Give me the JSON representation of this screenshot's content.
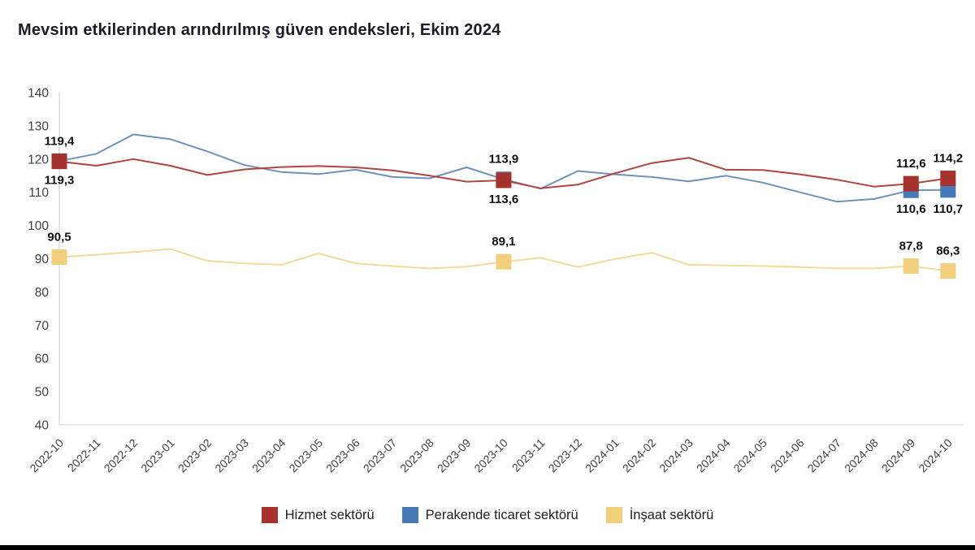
{
  "title": "Mevsim etkilerinden arındırılmış güven endeksleri, Ekim 2024",
  "colors": {
    "background": "#ffffff",
    "title_text": "#1c1c26",
    "axis_line": "#d9d9d9",
    "tick_text": "#424242",
    "annotation_text": "#101010",
    "bottom_bar": "#000000"
  },
  "chart_data": {
    "type": "line",
    "title": "Mevsim etkilerinden arındırılmış güven endeksleri, Ekim 2024",
    "xlabel": "",
    "ylabel": "",
    "ylim": [
      40,
      140
    ],
    "yticks": [
      140,
      130,
      120,
      110,
      100,
      90,
      80,
      70,
      60,
      50,
      40
    ],
    "grid": false,
    "legend_position": "bottom",
    "x": [
      "2022-10",
      "2022-11",
      "2022-12",
      "2023-01",
      "2023-02",
      "2023-03",
      "2023-04",
      "2023-05",
      "2023-06",
      "2023-07",
      "2023-08",
      "2023-09",
      "2023-10",
      "2023-11",
      "2023-12",
      "2024-01",
      "2024-02",
      "2024-03",
      "2024-04",
      "2024-05",
      "2024-06",
      "2024-07",
      "2024-08",
      "2024-09",
      "2024-10"
    ],
    "series": [
      {
        "key": "hizmet",
        "name": "Hizmet sektörü",
        "color": "#A5322C",
        "line_color": "#B04540",
        "values": [
          119.3,
          118.0,
          120.0,
          118.0,
          115.2,
          116.9,
          117.6,
          117.9,
          117.5,
          116.6,
          115.0,
          113.2,
          113.6,
          111.2,
          112.3,
          115.7,
          118.8,
          120.4,
          116.8,
          116.7,
          115.4,
          113.8,
          111.7,
          112.6,
          114.2
        ]
      },
      {
        "key": "perakende",
        "name": "Perakende ticaret sektörü",
        "color": "#4679B7",
        "line_color": "#6E92BD",
        "values": [
          119.4,
          121.6,
          127.4,
          126.0,
          122.3,
          118.2,
          116.1,
          115.5,
          116.8,
          114.6,
          114.2,
          117.5,
          113.9,
          111.1,
          116.4,
          115.4,
          114.6,
          113.3,
          115.0,
          112.9,
          110.0,
          107.2,
          108.0,
          110.6,
          110.7
        ]
      },
      {
        "key": "insaat",
        "name": "İnşaat sektörü",
        "color": "#F1CF7D",
        "line_color": "#F2DA9A",
        "values": [
          90.5,
          91.2,
          92.0,
          92.9,
          89.4,
          88.6,
          88.2,
          91.6,
          88.6,
          87.8,
          87.1,
          87.6,
          89.1,
          90.3,
          87.5,
          89.9,
          91.8,
          88.2,
          88.0,
          87.8,
          87.5,
          87.1,
          87.1,
          87.8,
          86.3
        ]
      }
    ],
    "annotations": [
      {
        "x": "2022-10",
        "series": "perakende",
        "value": 119.4,
        "label": "119,4",
        "pos": "above"
      },
      {
        "x": "2022-10",
        "series": "hizmet",
        "value": 119.3,
        "label": "119,3",
        "pos": "below"
      },
      {
        "x": "2022-10",
        "series": "insaat",
        "value": 90.5,
        "label": "90,5",
        "pos": "above"
      },
      {
        "x": "2023-10",
        "series": "perakende",
        "value": 113.9,
        "label": "113,9",
        "pos": "above"
      },
      {
        "x": "2023-10",
        "series": "hizmet",
        "value": 113.6,
        "label": "113,6",
        "pos": "below"
      },
      {
        "x": "2023-10",
        "series": "insaat",
        "value": 89.1,
        "label": "89,1",
        "pos": "above"
      },
      {
        "x": "2024-09",
        "series": "hizmet",
        "value": 112.6,
        "label": "112,6",
        "pos": "above"
      },
      {
        "x": "2024-09",
        "series": "perakende",
        "value": 110.6,
        "label": "110,6",
        "pos": "below"
      },
      {
        "x": "2024-09",
        "series": "insaat",
        "value": 87.8,
        "label": "87,8",
        "pos": "above"
      },
      {
        "x": "2024-10",
        "series": "hizmet",
        "value": 114.2,
        "label": "114,2",
        "pos": "above"
      },
      {
        "x": "2024-10",
        "series": "perakende",
        "value": 110.7,
        "label": "110,7",
        "pos": "below"
      },
      {
        "x": "2024-10",
        "series": "insaat",
        "value": 86.3,
        "label": "86,3",
        "pos": "above"
      }
    ]
  }
}
